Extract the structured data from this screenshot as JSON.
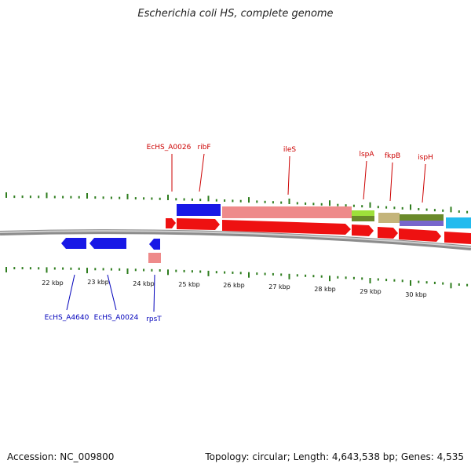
{
  "title": "Escherichia coli HS, complete genome",
  "footer": {
    "accession": "Accession: NC_009800",
    "summary": "Topology: circular; Length: 4,643,538 bp; Genes: 4,535"
  },
  "ruler_labels": [
    "22 kbp",
    "23 kbp",
    "24 kbp",
    "25 kbp",
    "26 kbp",
    "27 kbp",
    "28 kbp",
    "29 kbp",
    "30 kbp"
  ],
  "top_gene_labels": [
    "EcHS_A0026",
    "ribF",
    "ileS",
    "lspA",
    "fkpB",
    "ispH"
  ],
  "bottom_gene_labels": [
    "EcHS_A4640",
    "EcHS_A0024",
    "rpsT"
  ],
  "colors": {
    "label_top": "#cc0000",
    "label_bottom": "#0000bb",
    "backbone": "#8c8c8c",
    "tick": "#2e7d1e",
    "feature_red": "#ee1111",
    "feature_blue": "#1818e6",
    "feature_pink": "#ee8a8a",
    "feature_lime": "#9ee03a",
    "feature_olive": "#c4b47a",
    "feature_green": "#6a8a2a",
    "feature_purple": "#7766cc",
    "feature_cyan": "#22bbee"
  }
}
